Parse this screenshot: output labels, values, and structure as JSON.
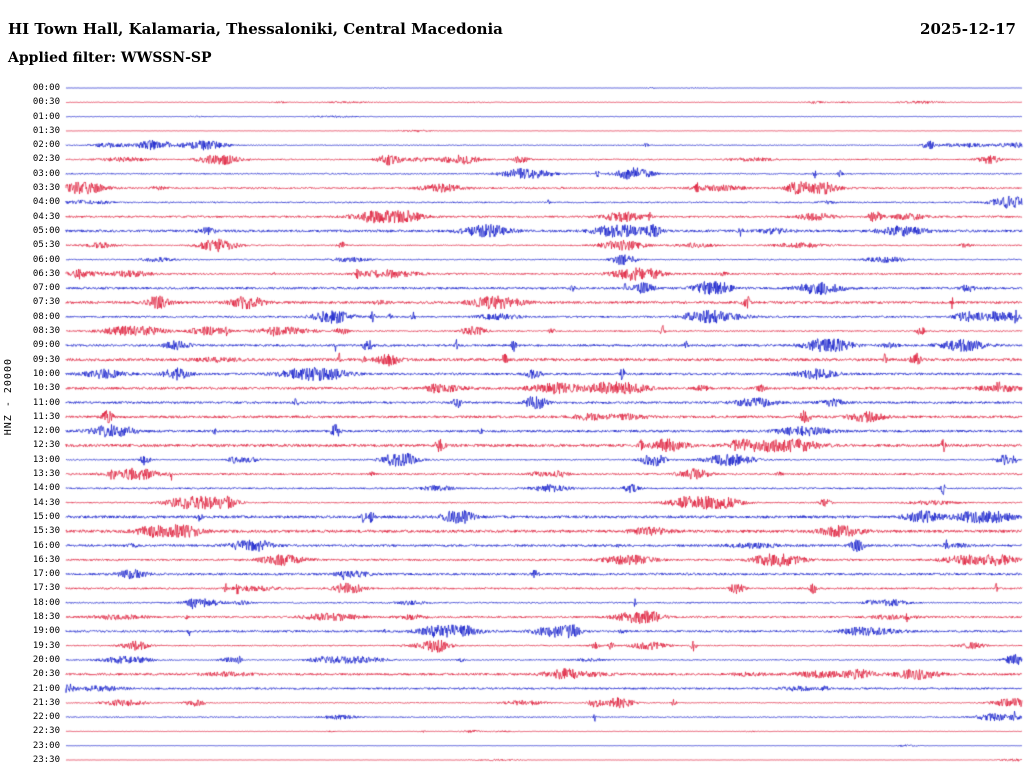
{
  "header": {
    "title": "HI Town Hall, Kalamaria, Thessaloniki, Central Macedonia",
    "date": "2025-12-17",
    "filter_label": "Applied filter: WWSSN-SP"
  },
  "y_axis_label": "HNZ - 20000",
  "colors": {
    "trace_blue": "#0a14c8",
    "trace_red": "#dc1432",
    "text": "#000000",
    "background": "#ffffff"
  },
  "chart_data": {
    "type": "line",
    "subtype": "helicorder-seismogram",
    "station_title": "HI Town Hall, Kalamaria, Thessaloniki, Central Macedonia",
    "date": "2025-12-17",
    "filter": "WWSSN-SP",
    "channel_scale_label": "HNZ - 20000",
    "minutes_per_row": 30,
    "rows_count": 48,
    "row_labels": [
      "00:00",
      "00:30",
      "01:00",
      "01:30",
      "02:00",
      "02:30",
      "03:00",
      "03:30",
      "04:00",
      "04:30",
      "05:00",
      "05:30",
      "06:00",
      "06:30",
      "07:00",
      "07:30",
      "08:00",
      "08:30",
      "09:00",
      "09:30",
      "10:00",
      "10:30",
      "11:00",
      "11:30",
      "12:00",
      "12:30",
      "13:00",
      "13:30",
      "14:00",
      "14:30",
      "15:00",
      "15:30",
      "16:00",
      "16:30",
      "17:00",
      "17:30",
      "18:00",
      "18:30",
      "19:00",
      "19:30",
      "20:00",
      "20:30",
      "21:00",
      "21:30",
      "22:00",
      "22:30",
      "23:00",
      "23:30"
    ],
    "row_color_pattern": [
      "blue",
      "red"
    ],
    "legend_position": "none",
    "grid": false,
    "description": "Continuous 24-hour vertical-component seismic drum record; one trace per 30 minutes, colors alternating blue/red per line. Traces show background microseismic noise with intermittent small-amplitude bursts; first two hours and last hours of the day are nearly flat, activity is densest mid-day. No numeric amplitude labels are rendered on the plot."
  }
}
